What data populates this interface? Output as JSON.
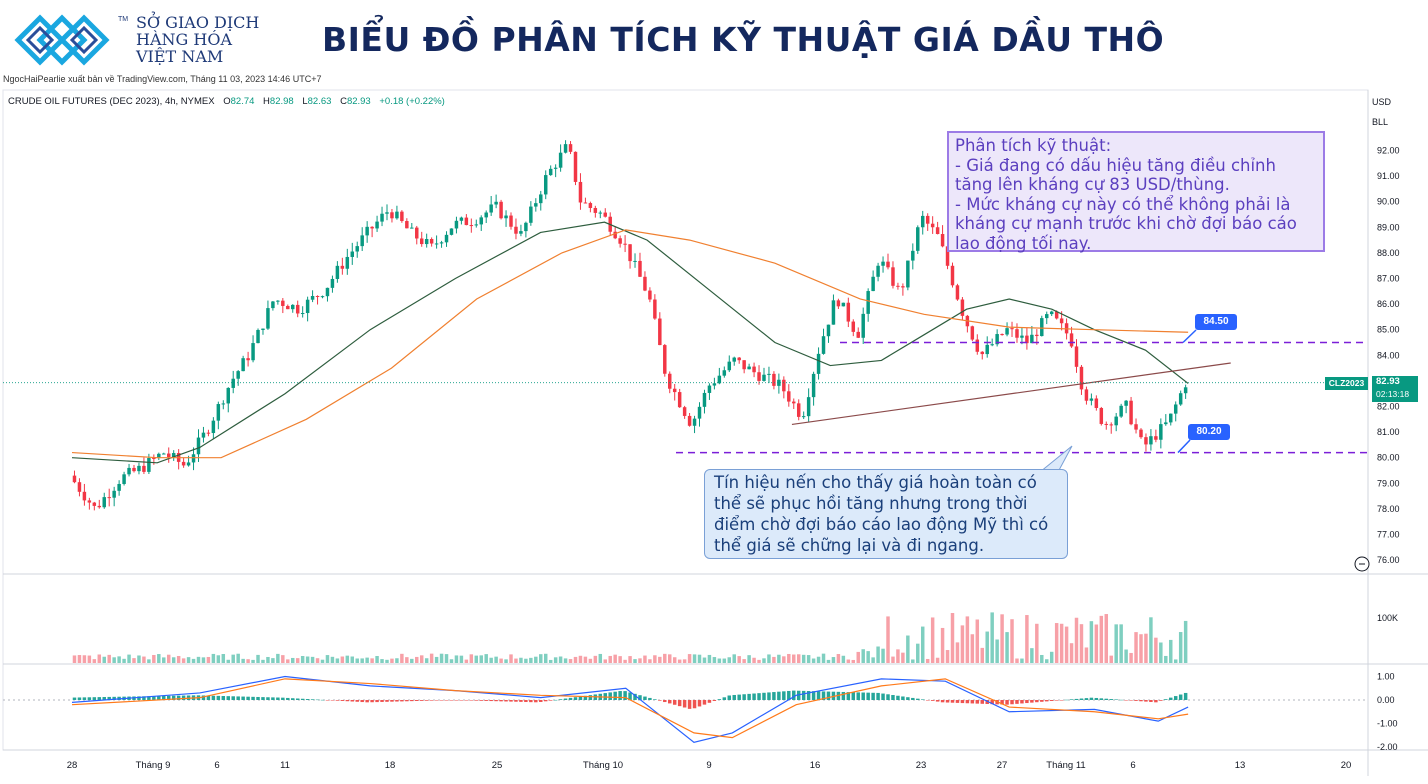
{
  "header": {
    "brand_line1": "SỞ GIAO DỊCH",
    "brand_line2": "HÀNG HÓA",
    "brand_line3": "VIỆT NAM",
    "trademark": "TM",
    "title": "BIỂU ĐỒ PHÂN TÍCH KỸ THUẬT GIÁ DẦU THÔ",
    "published": "NgocHaiPearlie xuất bản về TradingView.com, Tháng 11 03, 2023 14:46 UTC+7"
  },
  "symbol": {
    "name": "CRUDE OIL FUTURES (DEC 2023), 4h, NYMEX",
    "o_label": "O",
    "o": "82.74",
    "h_label": "H",
    "h": "82.98",
    "l_label": "L",
    "l": "82.63",
    "c_label": "C",
    "c": "82.93",
    "change": "+0.18 (+0.22%)"
  },
  "scale_buttons": {
    "currency": "USD",
    "unit": "BLL"
  },
  "price_tags": {
    "ticker": "CLZ2023",
    "last": "82.93",
    "countdown": "02:13:18",
    "resistance": "84.50",
    "support": "80.20"
  },
  "annotations": {
    "analysis": "Phân tích kỹ thuật:\n- Giá đang có dấu hiệu tăng điều chỉnh tăng lên kháng cự 83 USD/thùng.\n- Mức kháng cự này có thể không phải là kháng cự mạnh trước khi chờ đợi báo cáo lao động tối nay.",
    "signal": "Tín hiệu nến cho thấy giá hoàn toàn có thể sẽ phục hồi tăng nhưng trong thời điểm chờ đợi báo cáo lao động Mỹ thì có thể giá sẽ chững lại và đi ngang."
  },
  "colors": {
    "up": "#089981",
    "down": "#f23645",
    "ma_short": "#2e5d3e",
    "ma_long": "#f08030",
    "level": "#7b1fd8",
    "trendline": "#8b4a4a",
    "macd": "#2962ff",
    "signal": "#ff7a1a",
    "tag": "#2962ff"
  },
  "chart_data": {
    "type": "candlestick",
    "title": "CRUDE OIL FUTURES (DEC 2023), 4h, NYMEX",
    "price_axis": {
      "ticks": [
        "92.00",
        "91.00",
        "90.00",
        "89.00",
        "88.00",
        "87.00",
        "86.00",
        "85.00",
        "84.00",
        "83.00",
        "82.00",
        "81.00",
        "80.00",
        "79.00",
        "78.00",
        "77.00",
        "76.00"
      ],
      "range": [
        75.6,
        92.8
      ]
    },
    "volume_axis": {
      "ticks": [
        "100K"
      ]
    },
    "macd_axis": {
      "ticks": [
        "1.00",
        "0.00",
        "-1.00",
        "-2.00"
      ]
    },
    "time_axis": [
      "28",
      "Tháng 9",
      "6",
      "11",
      "18",
      "25",
      "Tháng 10",
      "9",
      "16",
      "23",
      "27",
      "Tháng 11",
      "6",
      "13",
      "20"
    ],
    "price_path": [
      [
        0,
        79.3
      ],
      [
        0.06,
        78.0
      ],
      [
        0.12,
        79.2
      ],
      [
        0.17,
        79.6
      ],
      [
        0.22,
        80.2
      ],
      [
        0.27,
        79.7
      ],
      [
        0.32,
        81.0
      ],
      [
        0.38,
        83.0
      ],
      [
        0.42,
        84.0
      ],
      [
        0.48,
        86.2
      ],
      [
        0.54,
        85.8
      ],
      [
        0.6,
        86.6
      ],
      [
        0.65,
        87.8
      ],
      [
        0.7,
        88.8
      ],
      [
        0.75,
        89.7
      ],
      [
        0.8,
        88.8
      ],
      [
        0.85,
        88.2
      ],
      [
        0.9,
        89.1
      ],
      [
        0.95,
        89.3
      ],
      [
        1.0,
        89.8
      ],
      [
        1.06,
        88.7
      ],
      [
        1.12,
        91.0
      ],
      [
        1.17,
        92.2
      ],
      [
        1.2,
        90.0
      ],
      [
        1.25,
        89.5
      ],
      [
        1.3,
        88.4
      ],
      [
        1.36,
        86.3
      ],
      [
        1.4,
        83.2
      ],
      [
        1.46,
        81.3
      ],
      [
        1.5,
        82.8
      ],
      [
        1.56,
        83.8
      ],
      [
        1.6,
        83.4
      ],
      [
        1.67,
        82.8
      ],
      [
        1.72,
        81.6
      ],
      [
        1.76,
        84.3
      ],
      [
        1.8,
        86.3
      ],
      [
        1.85,
        84.8
      ],
      [
        1.9,
        87.8
      ],
      [
        1.95,
        86.4
      ],
      [
        2.0,
        89.4
      ],
      [
        2.04,
        88.6
      ],
      [
        2.1,
        85.5
      ],
      [
        2.14,
        84.0
      ],
      [
        2.2,
        85.0
      ],
      [
        2.25,
        84.5
      ],
      [
        2.3,
        85.6
      ],
      [
        2.35,
        84.7
      ],
      [
        2.38,
        82.6
      ],
      [
        2.43,
        81.3
      ],
      [
        2.48,
        82.0
      ],
      [
        2.52,
        80.4
      ],
      [
        2.58,
        81.4
      ],
      [
        2.62,
        82.93
      ]
    ],
    "ma_short": [
      [
        0,
        80.0
      ],
      [
        0.2,
        79.8
      ],
      [
        0.3,
        80.4
      ],
      [
        0.5,
        82.5
      ],
      [
        0.7,
        85.0
      ],
      [
        0.9,
        87.0
      ],
      [
        1.1,
        88.8
      ],
      [
        1.25,
        89.2
      ],
      [
        1.35,
        88.5
      ],
      [
        1.5,
        86.5
      ],
      [
        1.65,
        84.5
      ],
      [
        1.78,
        83.6
      ],
      [
        1.9,
        83.8
      ],
      [
        2.0,
        84.8
      ],
      [
        2.1,
        85.8
      ],
      [
        2.2,
        86.2
      ],
      [
        2.3,
        85.8
      ],
      [
        2.4,
        85.0
      ],
      [
        2.52,
        84.2
      ],
      [
        2.62,
        82.9
      ]
    ],
    "ma_long": [
      [
        0,
        80.2
      ],
      [
        0.2,
        80.0
      ],
      [
        0.35,
        80.0
      ],
      [
        0.55,
        81.5
      ],
      [
        0.75,
        83.5
      ],
      [
        0.95,
        86.2
      ],
      [
        1.15,
        88.0
      ],
      [
        1.3,
        88.9
      ],
      [
        1.45,
        88.5
      ],
      [
        1.65,
        87.6
      ],
      [
        1.85,
        86.2
      ],
      [
        2.0,
        85.6
      ],
      [
        2.2,
        85.1
      ],
      [
        2.4,
        85.0
      ],
      [
        2.62,
        84.9
      ]
    ],
    "levels": [
      {
        "label": "84.50",
        "value": 84.5
      },
      {
        "label": "80.20",
        "value": 80.2
      }
    ],
    "trendline": [
      [
        1.69,
        81.3
      ],
      [
        2.72,
        83.7
      ]
    ],
    "current_price": 82.93,
    "macd": [
      [
        0,
        -0.1
      ],
      [
        0.3,
        0.3
      ],
      [
        0.5,
        1.0
      ],
      [
        0.7,
        0.6
      ],
      [
        0.9,
        0.4
      ],
      [
        1.1,
        0.1
      ],
      [
        1.3,
        0.5
      ],
      [
        1.46,
        -1.8
      ],
      [
        1.55,
        -1.4
      ],
      [
        1.7,
        0.2
      ],
      [
        1.9,
        0.9
      ],
      [
        2.05,
        0.8
      ],
      [
        2.2,
        -0.5
      ],
      [
        2.4,
        -0.4
      ],
      [
        2.55,
        -0.9
      ],
      [
        2.62,
        -0.3
      ]
    ],
    "signal": [
      [
        0,
        -0.2
      ],
      [
        0.3,
        0.1
      ],
      [
        0.5,
        0.9
      ],
      [
        0.7,
        0.7
      ],
      [
        0.9,
        0.4
      ],
      [
        1.1,
        0.2
      ],
      [
        1.3,
        0.1
      ],
      [
        1.46,
        -1.4
      ],
      [
        1.55,
        -1.6
      ],
      [
        1.7,
        -0.2
      ],
      [
        1.9,
        0.6
      ],
      [
        2.05,
        0.9
      ],
      [
        2.2,
        -0.3
      ],
      [
        2.4,
        -0.5
      ],
      [
        2.55,
        -0.8
      ],
      [
        2.62,
        -0.6
      ]
    ]
  }
}
